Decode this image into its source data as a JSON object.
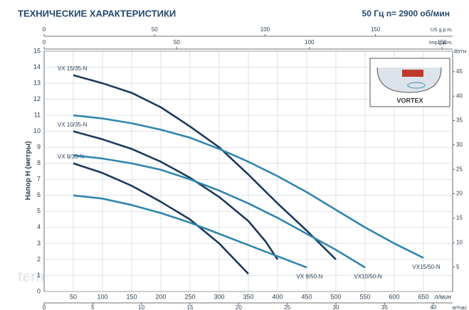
{
  "chart_data": {
    "type": "line",
    "title": "ТЕХНИЧЕСКИЕ ХАРАКТЕРИСТИКИ",
    "subtitle": "50 Гц  n= 2900 об/мин",
    "ylabel": "Напор H (метры)",
    "xlabel": "л/мин",
    "x2label": "м³/час",
    "toplabel": "US g.p.m.",
    "top2label": "Imp g.p.m.",
    "y2label": "футы",
    "inset_label": "VORTEX",
    "watermark": "termokit",
    "xlim": [
      0,
      700
    ],
    "xticks": [
      50,
      100,
      150,
      200,
      250,
      300,
      350,
      400,
      450,
      500,
      550,
      600,
      650
    ],
    "x2lim": [
      0,
      42
    ],
    "x2ticks": [
      0,
      5,
      10,
      15,
      20,
      25,
      30,
      35,
      40
    ],
    "toplim": [
      0,
      184.9
    ],
    "topticks": [
      0,
      50,
      100,
      150
    ],
    "top2lim": [
      0,
      154
    ],
    "top2ticks": [
      0,
      50,
      100,
      150
    ],
    "ylim": [
      0,
      15
    ],
    "yticks": [
      0,
      1,
      2,
      3,
      4,
      5,
      6,
      7,
      8,
      9,
      10,
      11,
      12,
      13,
      14,
      15
    ],
    "y2lim": [
      0,
      49.2
    ],
    "y2ticks": [
      5,
      10,
      15,
      20,
      25,
      30,
      35,
      40,
      45
    ],
    "grid": true,
    "series": [
      {
        "name": "VX 15/35-N",
        "color": "#1d3a5c",
        "label_at": "start",
        "x": [
          50,
          100,
          150,
          200,
          250,
          300,
          350,
          400,
          450,
          500
        ],
        "values": [
          13.5,
          13,
          12.4,
          11.5,
          10.3,
          9,
          7.3,
          5.5,
          3.8,
          2
        ]
      },
      {
        "name": "VX 10/35-N",
        "color": "#1d3a5c",
        "label_at": "start",
        "x": [
          50,
          100,
          150,
          200,
          250,
          300,
          350,
          380,
          400
        ],
        "values": [
          10,
          9.5,
          8.9,
          8.1,
          7.1,
          5.9,
          4.4,
          3.1,
          2
        ]
      },
      {
        "name": "VX 8/35-N",
        "color": "#1d3a5c",
        "label_at": "start",
        "x": [
          50,
          100,
          150,
          200,
          250,
          300,
          350
        ],
        "values": [
          8,
          7.4,
          6.6,
          5.6,
          4.5,
          3,
          1.1
        ]
      },
      {
        "name": "VX 8/50-N",
        "color": "#2f86ad",
        "label_at": "end",
        "x": [
          50,
          100,
          150,
          200,
          250,
          300,
          350,
          400,
          450
        ],
        "values": [
          6,
          5.8,
          5.4,
          4.9,
          4.3,
          3.6,
          2.9,
          2.2,
          1.5
        ]
      },
      {
        "name": "VX10/50-N",
        "color": "#2f86ad",
        "label_at": "end",
        "x": [
          50,
          100,
          150,
          200,
          250,
          300,
          350,
          400,
          450,
          500,
          550
        ],
        "values": [
          8.5,
          8.3,
          8,
          7.6,
          7,
          6.3,
          5.5,
          4.6,
          3.6,
          2.6,
          1.5
        ]
      },
      {
        "name": "VX15/50-N",
        "color": "#2f86ad",
        "label_at": "end",
        "x": [
          50,
          100,
          150,
          200,
          250,
          300,
          350,
          400,
          450,
          500,
          550,
          600,
          650
        ],
        "values": [
          11,
          10.8,
          10.5,
          10.1,
          9.6,
          8.9,
          8.1,
          7.2,
          6.2,
          5.1,
          4,
          3,
          2.1
        ]
      }
    ]
  }
}
